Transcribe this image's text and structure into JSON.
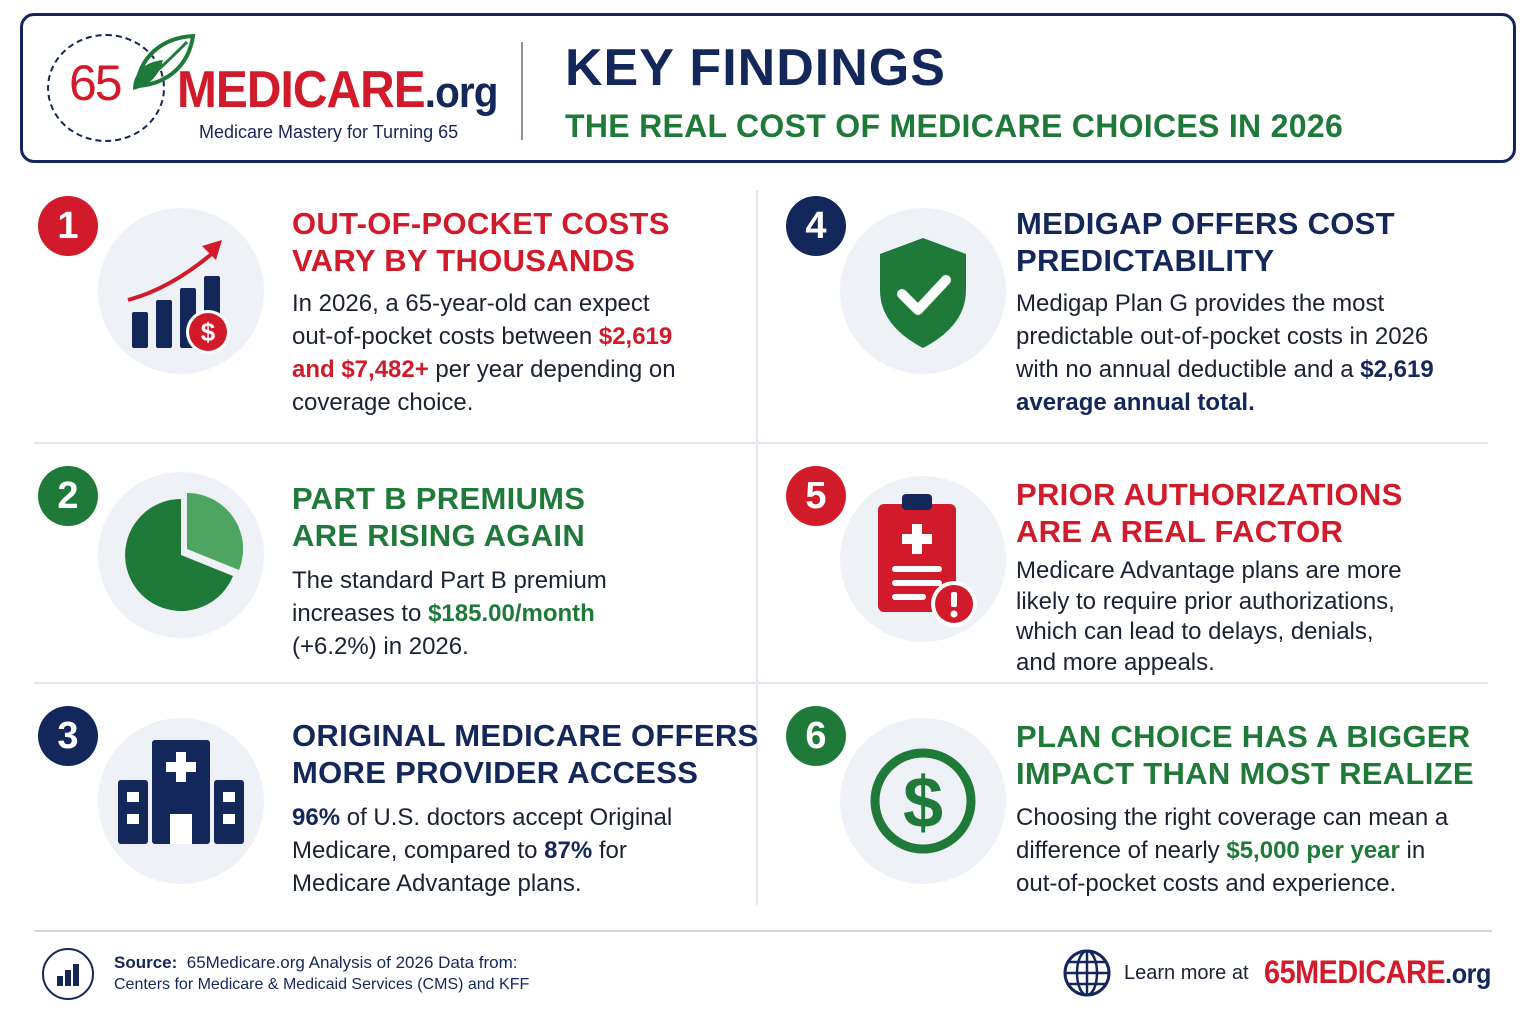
{
  "header": {
    "logo_number": "65",
    "logo_brand": "MEDICARE",
    "logo_org": ".org",
    "logo_tagline": "Medicare Mastery for Turning 65",
    "title": "KEY FINDINGS",
    "subtitle": "THE REAL COST OF MEDICARE CHOICES IN 2026"
  },
  "colors": {
    "navy": "#14275a",
    "red": "#d11a2a",
    "green": "#1f7a3a",
    "icon_bg": "#eef1f6"
  },
  "findings": [
    {
      "number": "1",
      "icon": "bar-chart-rising-dollar-icon",
      "title_line1": "OUT-OF-POCKET COSTS",
      "title_line2": "VARY BY THOUSANDS",
      "body_pre": "In 2026, a 65-year-old can expect out-of-pocket costs between ",
      "body_highlight": "$2,619 and $7,482+",
      "body_post": " per year depending on coverage choice."
    },
    {
      "number": "2",
      "icon": "pie-chart-icon",
      "title_line1": "PART B PREMIUMS",
      "title_line2": "ARE RISING AGAIN",
      "body_pre": "The standard Part B premium increases to ",
      "body_highlight": "$185.00/month",
      "body_post": " (+6.2%) in 2026."
    },
    {
      "number": "3",
      "icon": "hospital-icon",
      "title_line1": "ORIGINAL MEDICARE OFFERS",
      "title_line2": "MORE PROVIDER ACCESS",
      "body_highlight1": "96%",
      "body_mid": " of U.S. doctors accept Original Medicare, compared to ",
      "body_highlight2": "87%",
      "body_post": " for Medicare Advantage plans."
    },
    {
      "number": "4",
      "icon": "shield-check-icon",
      "title_line1": "MEDIGAP OFFERS COST",
      "title_line2": "PREDICTABILITY",
      "body_pre": "Medigap Plan G provides the most predictable out-of-pocket costs in 2026 with no annual deductible and a ",
      "body_highlight": "$2,619 average annual total."
    },
    {
      "number": "5",
      "icon": "clipboard-alert-icon",
      "title_line1": "PRIOR AUTHORIZATIONS",
      "title_line2": "ARE A REAL FACTOR",
      "body": "Medicare Advantage plans are more likely to require prior authorizations, which can lead to delays, denials, and more appeals."
    },
    {
      "number": "6",
      "icon": "dollar-circle-icon",
      "title_line1": "PLAN CHOICE HAS A BIGGER",
      "title_line2": "IMPACT THAN MOST REALIZE",
      "body_pre": "Choosing the right coverage can mean a difference of nearly ",
      "body_highlight": "$5,000 per year",
      "body_post": " in out-of-pocket costs and experience."
    }
  ],
  "footer": {
    "source_label": "Source:",
    "source_line1": "65Medicare.org Analysis of 2026 Data from:",
    "source_line2": "Centers for Medicare & Medicaid Services (CMS) and KFF",
    "learn_more": "Learn more at",
    "brand_number": "65",
    "brand_name": "MEDICARE",
    "brand_org": ".org"
  }
}
